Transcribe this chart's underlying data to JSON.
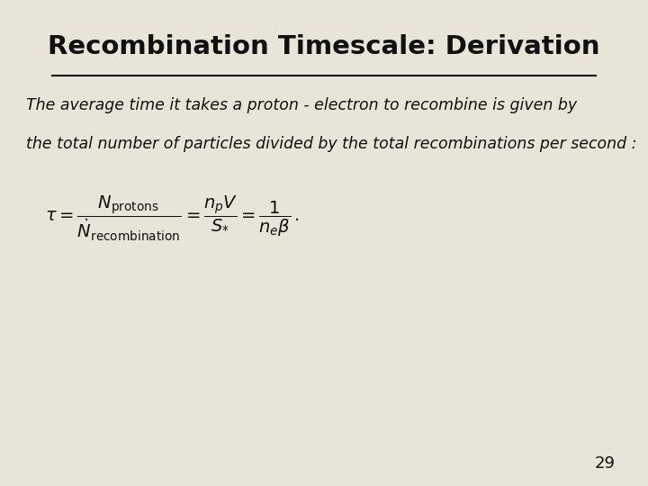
{
  "title": "Recombination Timescale: Derivation",
  "background_color": "#e8e4d8",
  "title_fontsize": 21,
  "title_color": "#111111",
  "text_line1": "The average time it takes a proton - electron to recombine is given by",
  "text_line2": "the total number of particles divided by the total recombinations per second :",
  "formula": "$\\tau = \\dfrac{N_{\\mathrm{protons}}}{\\dot{N}_{\\mathrm{recombination}}} = \\dfrac{n_p V}{S_{*}} = \\dfrac{1}{n_e \\beta}\\,.$",
  "page_number": "29",
  "text_fontsize": 12.5,
  "formula_fontsize": 14
}
